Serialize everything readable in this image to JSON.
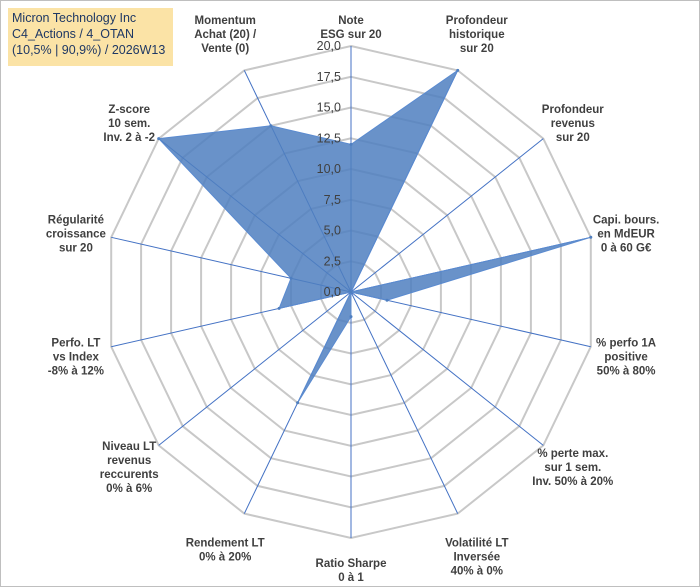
{
  "header": {
    "line1": "Micron Technology Inc",
    "line2": "C4_Actions / 4_OTAN",
    "line3": "(10,5% | 90,9%) / 2026W13"
  },
  "chart_data": {
    "type": "radar",
    "title": "Micron Technology Inc",
    "rlim": [
      0,
      20
    ],
    "ticks": [
      "0,0",
      "2,5",
      "5,0",
      "7,5",
      "10,0",
      "12,5",
      "15,0",
      "17,5",
      "20,0"
    ],
    "axes": [
      [
        "Note",
        "ESG sur 20"
      ],
      [
        "Profondeur",
        "historique",
        "sur 20"
      ],
      [
        "Profondeur",
        "revenus",
        "sur 20"
      ],
      [
        "Capi. bours.",
        "en MdEUR",
        "0 à 60 G€"
      ],
      [
        "% perfo 1A",
        "positive",
        "50% à 80%"
      ],
      [
        "% perte max.",
        "sur 1 sem.",
        "Inv. 50% à 20%"
      ],
      [
        "Volatilité LT",
        "Inversée",
        "40% à 0%"
      ],
      [
        "Ratio Sharpe",
        "0 à 1"
      ],
      [
        "Rendement LT",
        "0% à 20%"
      ],
      [
        "Niveau LT",
        "revenus",
        "reccurents",
        "0% à 6%"
      ],
      [
        "Perfo. LT",
        "vs Index",
        "-8% à 12%"
      ],
      [
        "Régularité",
        "croissance",
        "sur 20"
      ],
      [
        "Z-score",
        "10 sem.",
        "Inv. 2 à -2"
      ],
      [
        "Momentum",
        "Achat (20) /",
        "Vente (0)"
      ]
    ],
    "series": [
      {
        "name": "Micron Technology Inc",
        "color": "#4f7fc0",
        "values": [
          12,
          20,
          0,
          20,
          3,
          0,
          0,
          2,
          10,
          0,
          6,
          5,
          20,
          15
        ]
      }
    ],
    "gridlines": true
  }
}
